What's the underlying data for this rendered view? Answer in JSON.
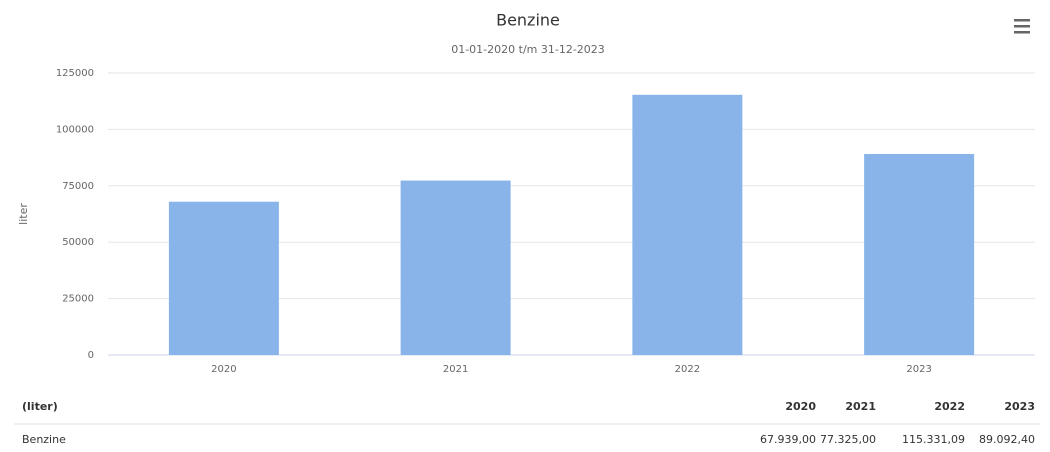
{
  "chart_data": {
    "type": "bar",
    "title": "Benzine",
    "subtitle": "01-01-2020 t/m 31-12-2023",
    "y_label": "liter",
    "categories": [
      "2020",
      "2021",
      "2022",
      "2023"
    ],
    "series": [
      {
        "name": "Benzine",
        "color": "#88b4ea",
        "values": [
          67939,
          77325,
          115331.09,
          89092.4
        ],
        "value_labels": [
          "67.939,00",
          "77.325,00",
          "115.331,09",
          "89.092,40"
        ]
      }
    ],
    "ylim": [
      0,
      125000
    ],
    "yticks": [
      0,
      25000,
      50000,
      75000,
      100000,
      125000
    ],
    "grid": true,
    "table_header": "(liter)"
  }
}
